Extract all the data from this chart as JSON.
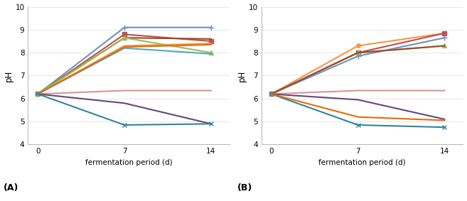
{
  "x": [
    0,
    7,
    14
  ],
  "panel_A": {
    "series": [
      {
        "color": "#7092be",
        "marker": "+",
        "linestyle": "-",
        "markersize": 6,
        "linewidth": 1.5,
        "values": [
          6.2,
          9.1,
          9.1
        ]
      },
      {
        "color": "#c0504d",
        "marker": "s",
        "linestyle": "-",
        "markersize": 4,
        "linewidth": 1.5,
        "values": [
          6.2,
          8.8,
          8.5
        ]
      },
      {
        "color": "#9e4828",
        "marker": "",
        "linestyle": "-",
        "markersize": 4,
        "linewidth": 1.5,
        "values": [
          6.2,
          8.65,
          8.6
        ]
      },
      {
        "color": "#f79646",
        "marker": "",
        "linestyle": "-",
        "markersize": 4,
        "linewidth": 1.5,
        "values": [
          6.2,
          8.3,
          8.4
        ]
      },
      {
        "color": "#9bbb59",
        "marker": "^",
        "linestyle": "-",
        "markersize": 4,
        "linewidth": 1.5,
        "values": [
          6.2,
          8.65,
          8.0
        ]
      },
      {
        "color": "#4bacc6",
        "marker": "",
        "linestyle": "-",
        "markersize": 4,
        "linewidth": 1.5,
        "values": [
          6.2,
          8.2,
          7.95
        ]
      },
      {
        "color": "#e36c09",
        "marker": "",
        "linestyle": "-",
        "markersize": 4,
        "linewidth": 1.5,
        "values": [
          6.2,
          8.25,
          8.35
        ]
      },
      {
        "color": "#d99694",
        "marker": "",
        "linestyle": "-",
        "markersize": 4,
        "linewidth": 1.5,
        "values": [
          6.2,
          6.35,
          6.35
        ]
      },
      {
        "color": "#604a7b",
        "marker": "",
        "linestyle": "-",
        "markersize": 4,
        "linewidth": 1.5,
        "values": [
          6.2,
          5.8,
          4.9
        ]
      },
      {
        "color": "#31849b",
        "marker": "x",
        "linestyle": "-",
        "markersize": 5,
        "linewidth": 1.5,
        "values": [
          6.2,
          4.85,
          4.9
        ]
      }
    ],
    "label": "(A)"
  },
  "panel_B": {
    "series": [
      {
        "color": "#f79646",
        "marker": "o",
        "linestyle": "-",
        "markersize": 4,
        "linewidth": 1.5,
        "values": [
          6.2,
          8.3,
          8.85
        ]
      },
      {
        "color": "#c0504d",
        "marker": "s",
        "linestyle": "-",
        "markersize": 4,
        "linewidth": 1.5,
        "values": [
          6.2,
          8.0,
          8.85
        ]
      },
      {
        "color": "#9bbb59",
        "marker": "^",
        "linestyle": "-",
        "markersize": 4,
        "linewidth": 1.5,
        "values": [
          6.2,
          8.0,
          8.3
        ]
      },
      {
        "color": "#7092be",
        "marker": "+",
        "linestyle": "-",
        "markersize": 6,
        "linewidth": 1.5,
        "values": [
          6.2,
          7.85,
          8.65
        ]
      },
      {
        "color": "#9e4828",
        "marker": "",
        "linestyle": "-",
        "markersize": 4,
        "linewidth": 1.5,
        "values": [
          6.2,
          8.0,
          8.3
        ]
      },
      {
        "color": "#d99694",
        "marker": "",
        "linestyle": "-",
        "markersize": 4,
        "linewidth": 1.5,
        "values": [
          6.2,
          6.35,
          6.35
        ]
      },
      {
        "color": "#604a7b",
        "marker": "",
        "linestyle": "-",
        "markersize": 4,
        "linewidth": 1.5,
        "values": [
          6.2,
          5.95,
          5.1
        ]
      },
      {
        "color": "#31849b",
        "marker": "x",
        "linestyle": "-",
        "markersize": 5,
        "linewidth": 1.5,
        "values": [
          6.2,
          4.85,
          4.75
        ]
      },
      {
        "color": "#e36c09",
        "marker": "",
        "linestyle": "-",
        "markersize": 4,
        "linewidth": 1.5,
        "values": [
          6.2,
          5.2,
          5.05
        ]
      }
    ],
    "label": "(B)"
  },
  "xlabel": "fermentation period (d)",
  "ylabel": "pH",
  "xticks": [
    0,
    7,
    14
  ],
  "ylim": [
    4,
    10
  ],
  "yticks": [
    4,
    5,
    6,
    7,
    8,
    9,
    10
  ],
  "bg_color": "#ffffff",
  "figsize": [
    6.57,
    2.83
  ],
  "dpi": 100
}
